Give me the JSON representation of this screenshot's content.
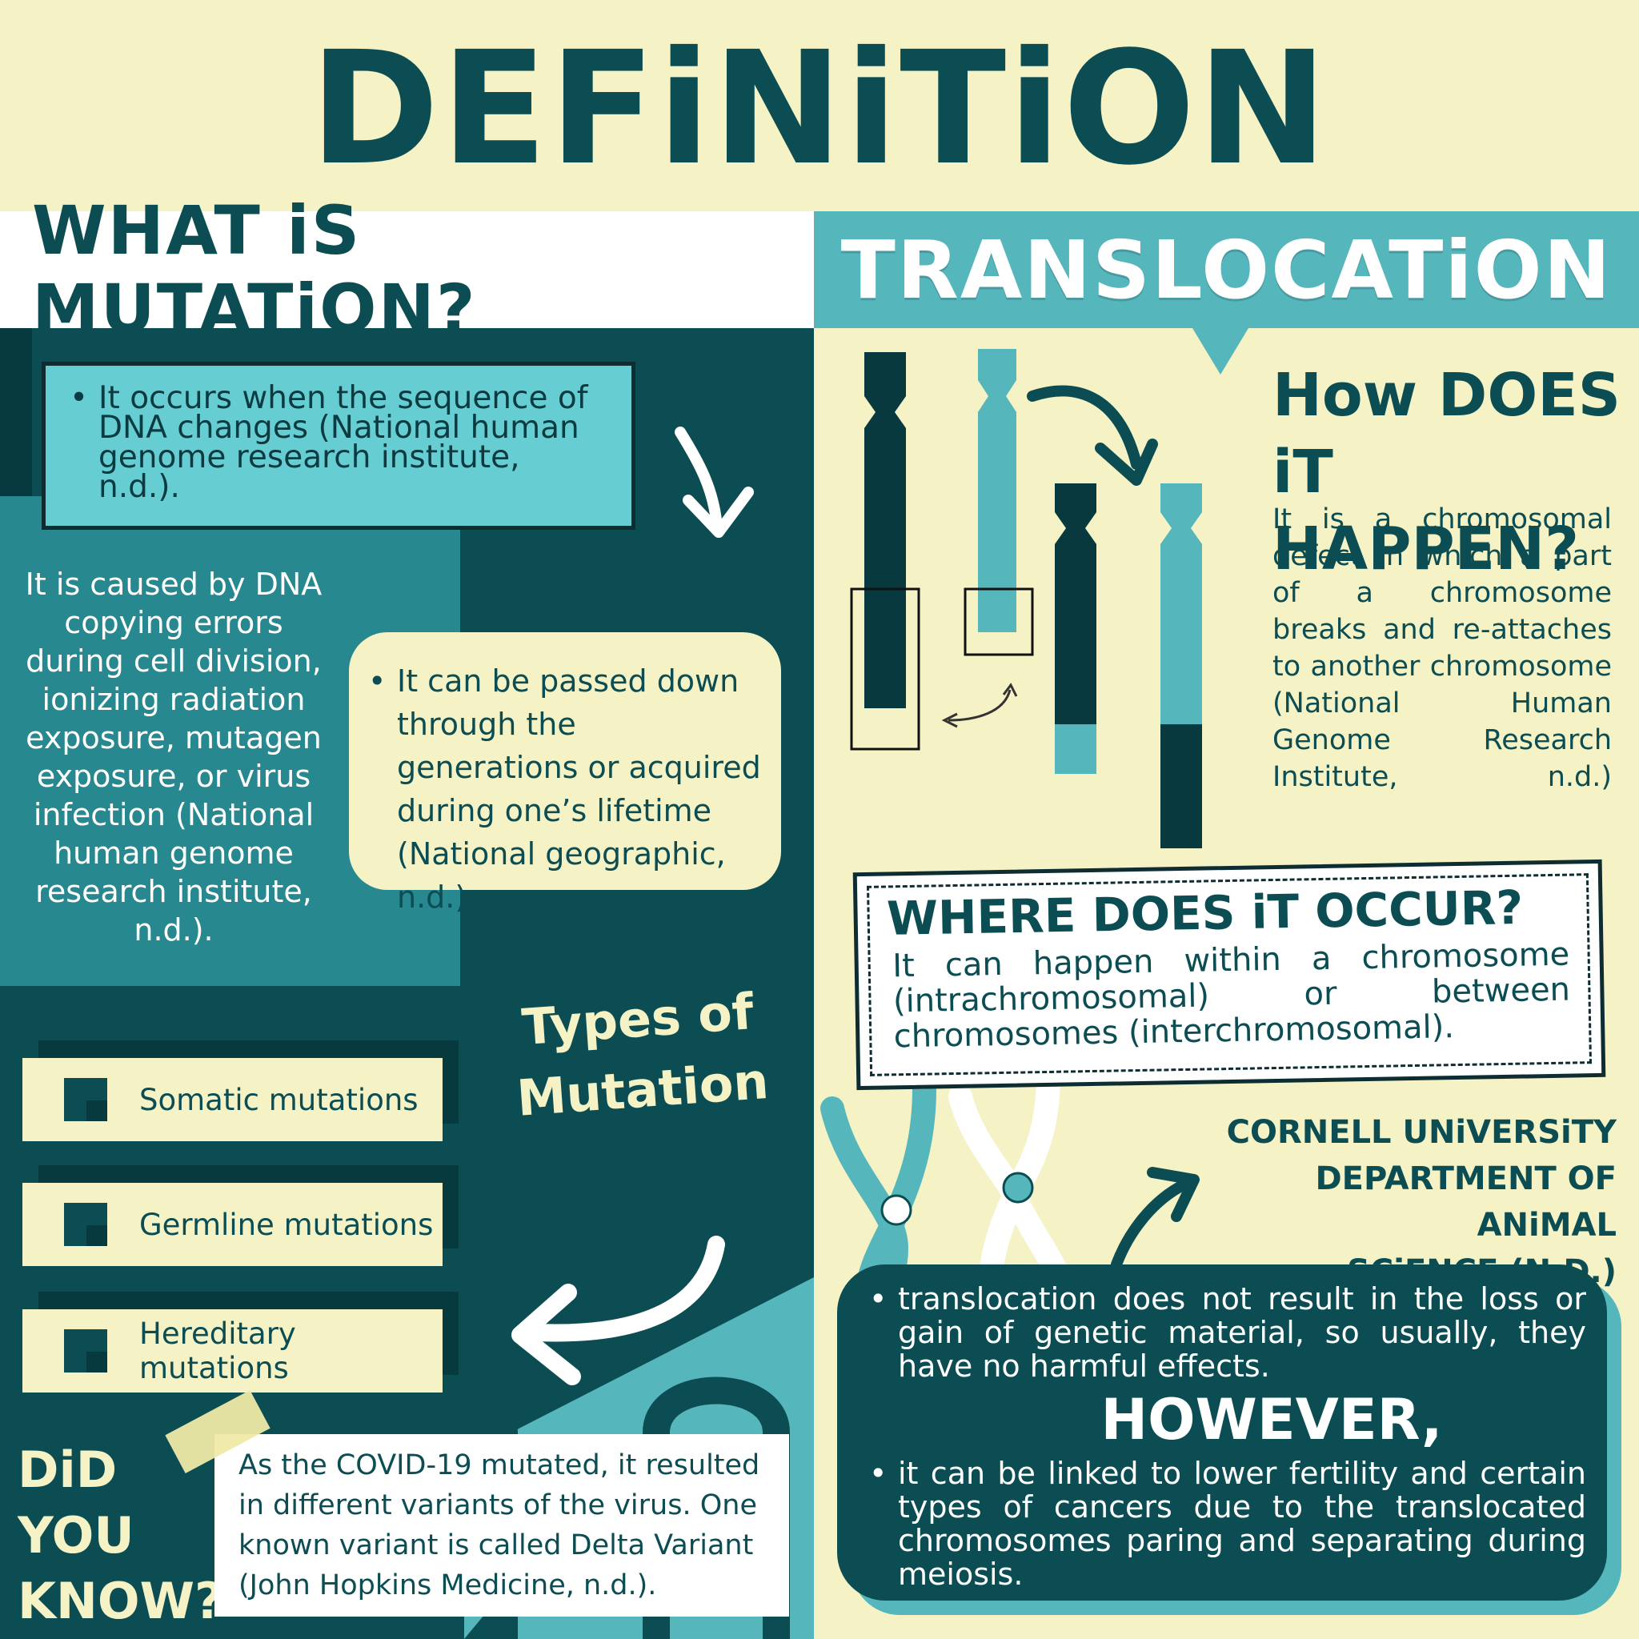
{
  "title": "DEFiNiTiON",
  "left": {
    "header": "WHAT iS MUTATiON?",
    "definition": "It occurs when the sequence of DNA changes (National human genome research institute, n.d.).",
    "cause": "It is caused by DNA copying errors during cell division, ionizing radiation exposure, mutagen exposure, or virus infection (National human genome research institute, n.d.).",
    "passed": "It can be passed down through the generations or acquired during one’s lifetime (National geographic, n.d.).",
    "types_title": "Types of Mutation",
    "types": [
      "Somatic mutations",
      "Germline mutations",
      "Hereditary mutations"
    ],
    "did_you_know_title": "DiD YOU KNOW?",
    "did_you_know_text": "As the COVID-19 mutated, it resulted in different variants of the virus. One known variant is called Delta Variant (John Hopkins Medicine, n.d.)."
  },
  "right": {
    "header": "TRANSLOCATiON",
    "how_title": "How DOES iT HAPPEN?",
    "how_text": "It is a chromosomal defect in which a part of a chromosome breaks and re-attaches to another chromosome (National Human Genome Research Institute, n.d.)",
    "where_title": "WHERE DOES iT OCCUR?",
    "where_text": "It can happen within a chromosome (intrachromosomal) or between chromosomes (interchromosomal).",
    "source_line1": "CORNELL UNiVERSiTY",
    "source_line2": "DEPARTMENT OF ANiMAL",
    "source_line3": "SCiENCE (N.D.)",
    "effect_text": "translocation does not result in the loss or gain of genetic material, so usually, they have no harmful effects.",
    "however": "HOWEVER,",
    "risk_text": "it can be linked to lower fertility and certain types of cancers due to the translocated chromosomes paring and separating during meiosis."
  },
  "colors": {
    "dark_teal": "#0b4d53",
    "mid_teal": "#27888f",
    "light_teal": "#55b6bc",
    "aqua": "#66cdd2",
    "cream": "#f5f2c6"
  },
  "icons": [
    "curved-arrow-icon",
    "swap-arrow-icon",
    "chromosome-icon",
    "square-bullet-icon",
    "tape-icon"
  ]
}
